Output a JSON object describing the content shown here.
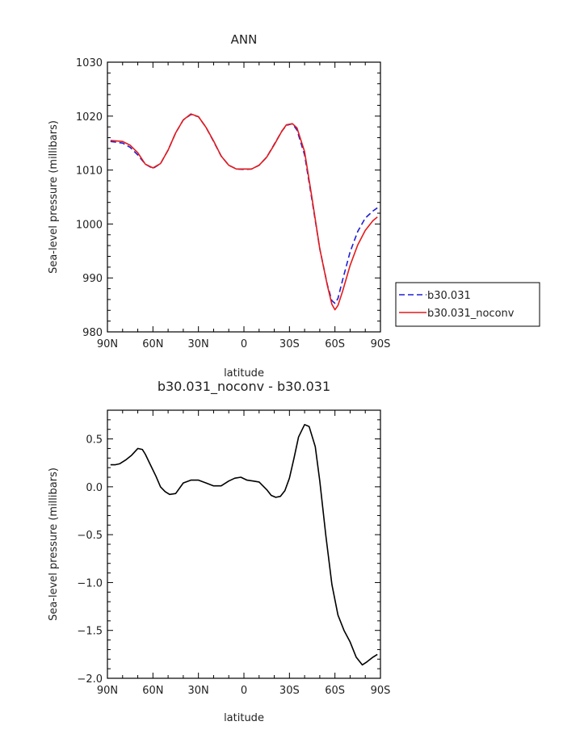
{
  "chart_data": [
    {
      "type": "line",
      "title": "ANN",
      "xlabel": "latitude",
      "ylabel": "Sea-level pressure (millibars)",
      "xlim": [
        90,
        -90
      ],
      "ylim": [
        980,
        1030
      ],
      "xticks": [
        {
          "v": 90,
          "label": "90N"
        },
        {
          "v": 60,
          "label": "60N"
        },
        {
          "v": 30,
          "label": "30N"
        },
        {
          "v": 0,
          "label": "0"
        },
        {
          "v": -30,
          "label": "30S"
        },
        {
          "v": -60,
          "label": "60S"
        },
        {
          "v": -90,
          "label": "90S"
        }
      ],
      "yticks": [
        980,
        990,
        1000,
        1010,
        1020,
        1030
      ],
      "legend_position": "right-outside",
      "series": [
        {
          "name": "b30.031",
          "color": "#1f1fd6",
          "dash": "dashed",
          "x": [
            88,
            80,
            75,
            70,
            65,
            60,
            55,
            50,
            45,
            40,
            35,
            30,
            25,
            20,
            15,
            10,
            5,
            0,
            -5,
            -10,
            -15,
            -20,
            -25,
            -28,
            -32,
            -35,
            -40,
            -45,
            -50,
            -55,
            -58,
            -60,
            -62,
            -65,
            -70,
            -75,
            -80,
            -85,
            -88
          ],
          "y": [
            1015.3,
            1015.0,
            1014.2,
            1012.8,
            1011.1,
            1010.3,
            1011.2,
            1013.7,
            1016.9,
            1019.3,
            1020.3,
            1019.9,
            1017.9,
            1015.3,
            1012.6,
            1010.9,
            1010.2,
            1010.1,
            1010.2,
            1010.9,
            1012.4,
            1014.8,
            1017.2,
            1018.3,
            1018.6,
            1017.4,
            1012.8,
            1004.2,
            995.4,
            988.7,
            985.8,
            985.3,
            986.2,
            989.6,
            994.8,
            998.6,
            1001.1,
            1002.4,
            1003.0
          ]
        },
        {
          "name": "b30.031_noconv",
          "color": "#e41a1a",
          "dash": "solid",
          "x": [
            88,
            80,
            75,
            70,
            65,
            60,
            55,
            50,
            45,
            40,
            35,
            30,
            25,
            20,
            15,
            10,
            5,
            0,
            -5,
            -10,
            -15,
            -20,
            -25,
            -28,
            -32,
            -35,
            -40,
            -45,
            -50,
            -55,
            -58,
            -60,
            -62,
            -65,
            -70,
            -75,
            -80,
            -85,
            -88
          ],
          "y": [
            1015.5,
            1015.3,
            1014.6,
            1013.2,
            1011.1,
            1010.4,
            1011.2,
            1013.7,
            1016.9,
            1019.3,
            1020.4,
            1019.9,
            1017.9,
            1015.4,
            1012.6,
            1010.9,
            1010.2,
            1010.2,
            1010.2,
            1010.9,
            1012.4,
            1014.7,
            1017.2,
            1018.4,
            1018.6,
            1017.8,
            1013.4,
            1004.6,
            995.4,
            988.6,
            985.1,
            984.1,
            984.9,
            987.5,
            992.3,
            996.1,
            998.8,
            1000.6,
            1001.3
          ]
        }
      ]
    },
    {
      "type": "line",
      "title": "b30.031_noconv - b30.031",
      "xlabel": "latitude",
      "ylabel": "Sea-level pressure (millibars)",
      "xlim": [
        90,
        -90
      ],
      "ylim": [
        -2.0,
        0.8
      ],
      "xticks": [
        {
          "v": 90,
          "label": "90N"
        },
        {
          "v": 60,
          "label": "60N"
        },
        {
          "v": 30,
          "label": "30N"
        },
        {
          "v": 0,
          "label": "0"
        },
        {
          "v": -30,
          "label": "30S"
        },
        {
          "v": -60,
          "label": "60S"
        },
        {
          "v": -90,
          "label": "90S"
        }
      ],
      "yticks": [
        {
          "v": 0.5,
          "label": "0.5"
        },
        {
          "v": 0.0,
          "label": "0.0"
        },
        {
          "v": -0.5,
          "label": "−0.5"
        },
        {
          "v": -1.0,
          "label": "−1.0"
        },
        {
          "v": -1.5,
          "label": "−1.5"
        },
        {
          "v": -2.0,
          "label": "−2.0"
        }
      ],
      "series": [
        {
          "color": "#000000",
          "dash": "solid",
          "x": [
            88,
            85,
            82,
            78,
            74,
            70,
            67,
            65,
            62,
            58,
            55,
            52,
            49,
            45,
            40,
            35,
            30,
            25,
            20,
            15,
            10,
            6,
            2,
            -2,
            -6,
            -10,
            -15,
            -18,
            -21,
            -24,
            -27,
            -30,
            -33,
            -36,
            -40,
            -43,
            -47,
            -50,
            -54,
            -58,
            -62,
            -66,
            -70,
            -74,
            -78,
            -81,
            -85,
            -88
          ],
          "y": [
            0.23,
            0.23,
            0.24,
            0.28,
            0.33,
            0.4,
            0.39,
            0.34,
            0.24,
            0.11,
            0.0,
            -0.05,
            -0.08,
            -0.07,
            0.04,
            0.07,
            0.07,
            0.04,
            0.01,
            0.01,
            0.06,
            0.09,
            0.1,
            0.07,
            0.06,
            0.05,
            -0.03,
            -0.09,
            -0.11,
            -0.1,
            -0.04,
            0.09,
            0.3,
            0.52,
            0.65,
            0.63,
            0.42,
            0.06,
            -0.51,
            -1.02,
            -1.34,
            -1.5,
            -1.62,
            -1.78,
            -1.86,
            -1.83,
            -1.78,
            -1.75
          ]
        }
      ]
    }
  ]
}
